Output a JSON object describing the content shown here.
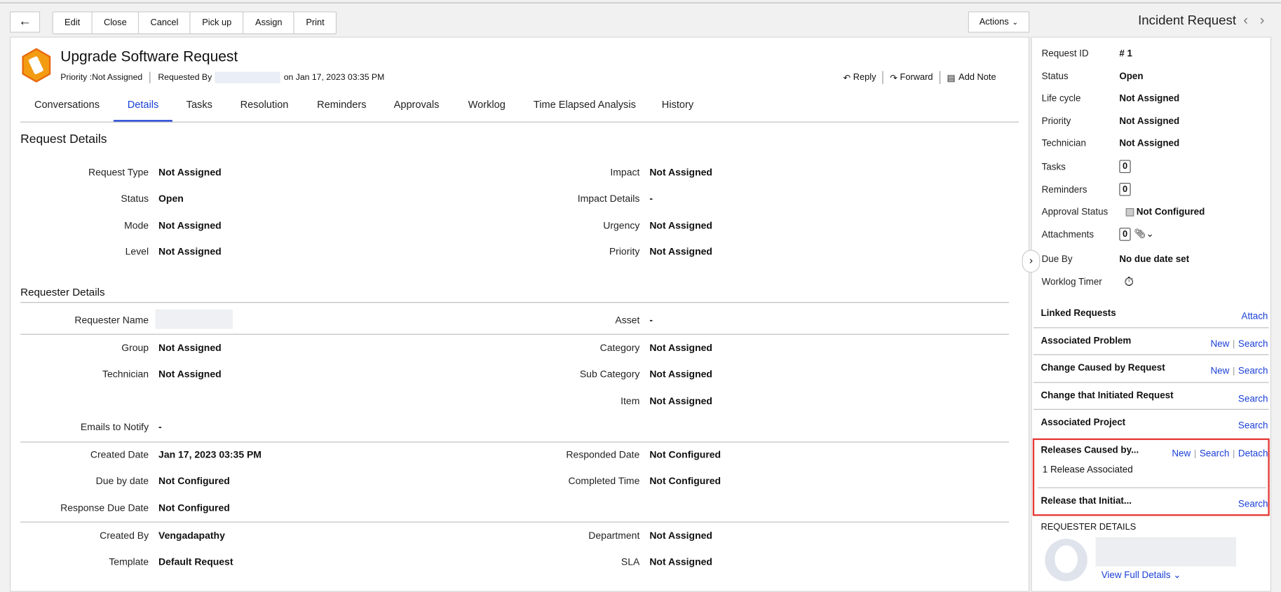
{
  "toolbar": {
    "buttons": [
      "Edit",
      "Close",
      "Cancel",
      "Pick up",
      "Assign",
      "Print"
    ],
    "actions": "Actions",
    "module_title": "Incident Request"
  },
  "header": {
    "title": "Upgrade Software Request",
    "priority": "Priority :Not Assigned",
    "requested_by": "Requested By",
    "requested_on": "on Jan 17, 2023 03:35 PM",
    "reply": "Reply",
    "forward": "Forward",
    "add_note": "Add Note"
  },
  "tabs": [
    "Conversations",
    "Details",
    "Tasks",
    "Resolution",
    "Reminders",
    "Approvals",
    "Worklog",
    "Time Elapsed Analysis",
    "History"
  ],
  "active_tab": "Details",
  "request_details": {
    "heading": "Request Details",
    "left": [
      [
        "Request Type",
        "Not Assigned"
      ],
      [
        "Status",
        "Open"
      ],
      [
        "Mode",
        "Not Assigned"
      ],
      [
        "Level",
        "Not Assigned"
      ]
    ],
    "right": [
      [
        "Impact",
        "Not Assigned"
      ],
      [
        "Impact Details",
        "-"
      ],
      [
        "Urgency",
        "Not Assigned"
      ],
      [
        "Priority",
        "Not Assigned"
      ]
    ]
  },
  "requester_details": {
    "heading": "Requester Details",
    "requester_name_label": "Requester Name",
    "asset": [
      "Asset",
      "-"
    ],
    "g2_left": [
      [
        "Group",
        "Not Assigned"
      ],
      [
        "Technician",
        "Not Assigned"
      ]
    ],
    "g2_right": [
      [
        "Category",
        "Not Assigned"
      ],
      [
        "Sub Category",
        "Not Assigned"
      ],
      [
        "Item",
        "Not Assigned"
      ]
    ],
    "emails": [
      "Emails to Notify",
      "-"
    ],
    "g3_left": [
      [
        "Created Date",
        "Jan 17, 2023 03:35 PM"
      ],
      [
        "Due by date",
        "Not Configured"
      ],
      [
        "Response Due Date",
        "Not Configured"
      ]
    ],
    "g3_right": [
      [
        "Responded Date",
        "Not Configured"
      ],
      [
        "Completed Time",
        "Not Configured"
      ]
    ],
    "g4_left": [
      [
        "Created By",
        "Vengadapathy"
      ],
      [
        "Template",
        "Default Request"
      ]
    ],
    "g4_right": [
      [
        "Department",
        "Not Assigned"
      ],
      [
        "SLA",
        "Not Assigned"
      ]
    ]
  },
  "side": {
    "rows": [
      [
        "Request ID",
        "# 1"
      ],
      [
        "Status",
        "Open"
      ],
      [
        "Life cycle",
        "Not Assigned"
      ],
      [
        "Priority",
        "Not Assigned"
      ],
      [
        "Technician",
        "Not Assigned"
      ]
    ],
    "tasks": [
      "Tasks",
      "0"
    ],
    "reminders": [
      "Reminders",
      "0"
    ],
    "approval": [
      "Approval Status",
      "Not Configured"
    ],
    "attachments": [
      "Attachments",
      "0"
    ],
    "due_by": [
      "Due By",
      "No due date set"
    ],
    "worklog": "Worklog Timer",
    "linked": {
      "label": "Linked Requests",
      "attach": "Attach"
    },
    "problem": {
      "label": "Associated Problem",
      "new": "New",
      "search": "Search"
    },
    "change_caused": {
      "label": "Change Caused by Request",
      "new": "New",
      "search": "Search"
    },
    "change_initiated": {
      "label": "Change that Initiated Request",
      "search": "Search"
    },
    "project": {
      "label": "Associated Project",
      "search": "Search"
    },
    "releases_caused": {
      "label": "Releases Caused by...",
      "new": "New",
      "search": "Search",
      "detach": "Detach",
      "count": "1 Release Associated"
    },
    "release_initiated": {
      "label": "Release that Initiat...",
      "search": "Search"
    },
    "requester_heading": "REQUESTER DETAILS",
    "view_full": "View Full Details"
  },
  "colors": {
    "link": "#1a3fd6",
    "highlight": "#e53935",
    "icon": "#f39c12"
  }
}
